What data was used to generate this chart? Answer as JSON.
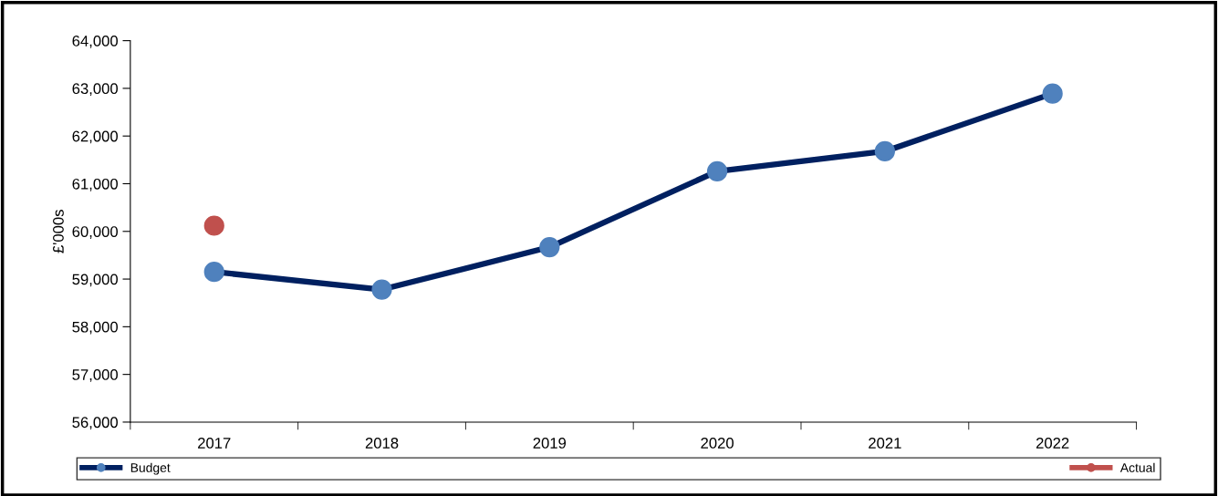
{
  "chart_data": {
    "type": "line",
    "ylabel": "£'000s",
    "categories": [
      "2017",
      "2018",
      "2019",
      "2020",
      "2021",
      "2022"
    ],
    "series": [
      {
        "name": "Budget",
        "color": "#002060",
        "colors": [
          "#4f81bd",
          "#4f81bd",
          "#4f81bd",
          "#4f81bd",
          "#4f81bd",
          "#4f81bd"
        ],
        "values": [
          59150,
          58780,
          59670,
          61260,
          61680,
          62890
        ]
      },
      {
        "name": "Actual",
        "color": "#c0504d",
        "values": [
          60120,
          null,
          null,
          null,
          null,
          null
        ]
      }
    ],
    "ylim": [
      56000,
      64000
    ],
    "yticks": [
      {
        "value": 56000,
        "label": "56,000"
      },
      {
        "value": 57000,
        "label": "57,000"
      },
      {
        "value": 58000,
        "label": "58,000"
      },
      {
        "value": 59000,
        "label": "59,000"
      },
      {
        "value": 60000,
        "label": "60,000"
      },
      {
        "value": 61000,
        "label": "61,000"
      },
      {
        "value": 62000,
        "label": "62,000"
      },
      {
        "value": 63000,
        "label": "63,000"
      },
      {
        "value": 64000,
        "label": "64,000"
      }
    ],
    "grid": false,
    "legend": "bottom",
    "marker": "circle",
    "line_style": "solid"
  }
}
